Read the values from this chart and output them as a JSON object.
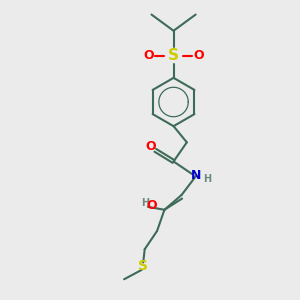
{
  "bg_color": "#ebebeb",
  "bond_color": "#3d6b58",
  "atom_colors": {
    "O": "#ff0000",
    "S": "#cccc00",
    "N": "#0000cc",
    "H": "#6a8a80",
    "C": "#3d6b58"
  },
  "line_width": 1.5,
  "font_size": 9,
  "fig_size": [
    3.0,
    3.0
  ],
  "dpi": 100
}
